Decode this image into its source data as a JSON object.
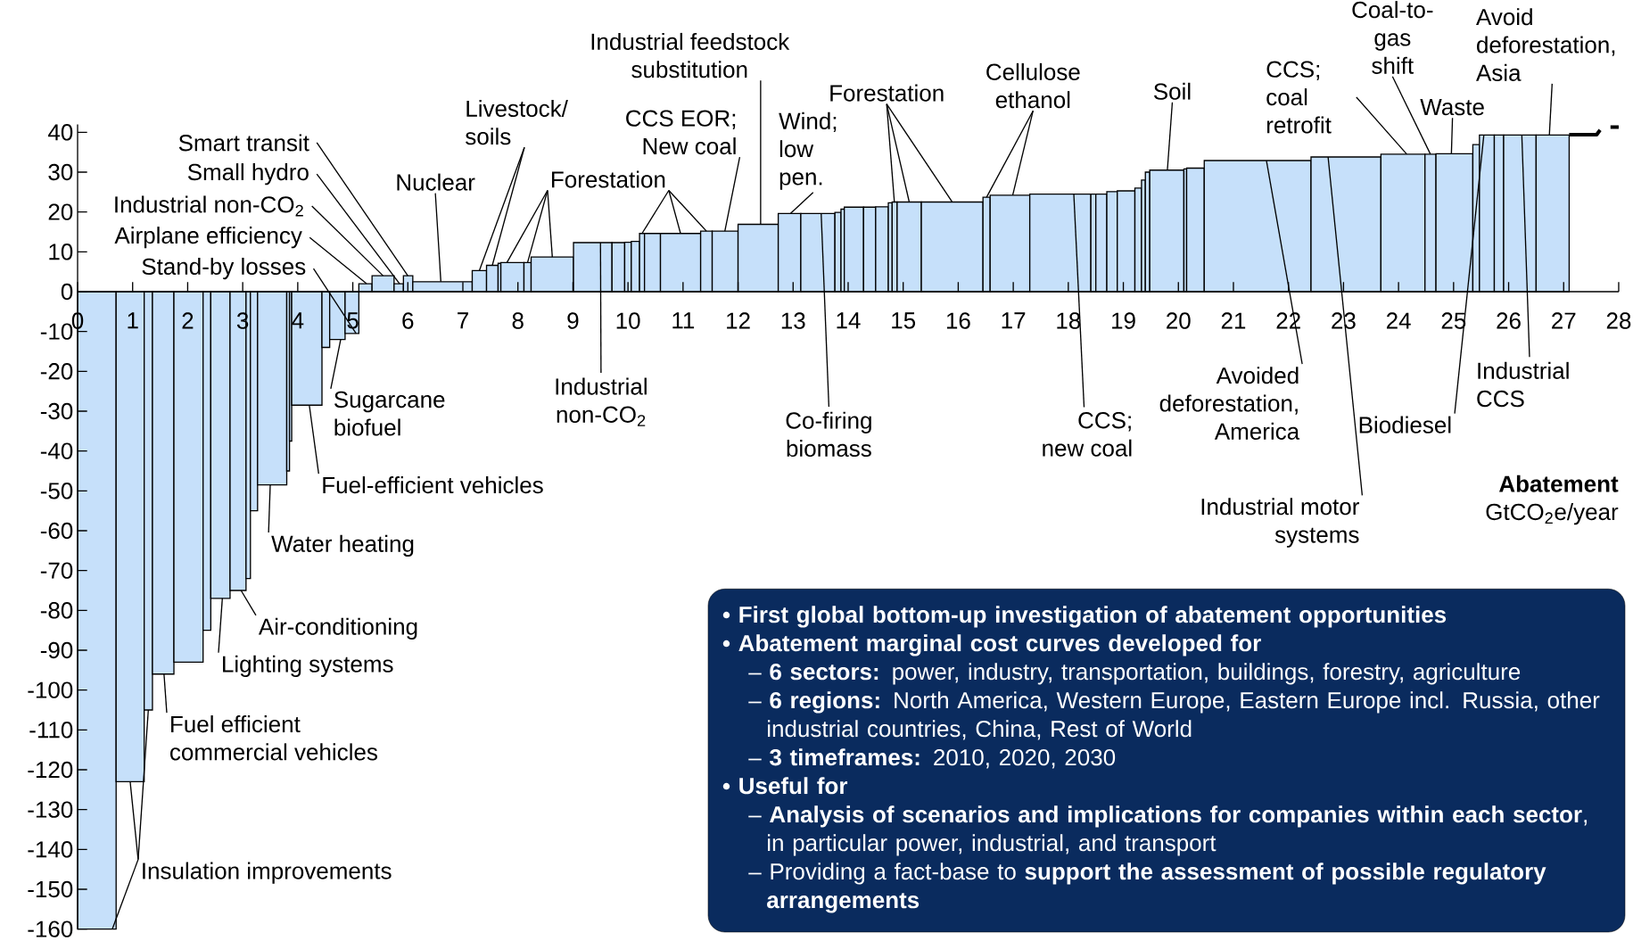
{
  "chart_data": {
    "type": "histogram",
    "xlabel": "**Abatement** GtCO$_{2}$e/year",
    "bins": [
      0,
      0.7,
      1.21,
      1.36,
      1.75,
      2.28,
      2.42,
      2.77,
      3.06,
      3.14,
      3.27,
      3.8,
      3.85,
      3.89,
      4.44,
      4.58,
      4.86,
      5.11,
      5.35,
      5.75,
      5.92,
      6.09,
      7.17,
      7.43,
      7.64,
      7.69,
      8.11,
      8.24,
      9.01,
      9.71,
      9.94,
      10.06,
      10.21,
      10.3,
      10.59,
      11.32,
      11.53,
      12.0,
      12.73,
      13.14,
      13.76,
      13.87,
      13.93,
      14.28,
      14.5,
      14.73,
      14.8,
      14.89,
      15.33,
      16.45,
      16.58,
      17.3,
      18.41,
      18.5,
      18.7,
      18.89,
      19.21,
      19.33,
      19.4,
      19.48,
      20.1,
      20.15,
      20.47,
      22.41,
      23.68,
      24.48,
      24.68,
      25.35,
      25.47,
      25.74,
      25.91,
      26.5,
      27.1
    ],
    "values": [
      -160,
      -123,
      -105,
      -96,
      -93,
      -85,
      -77,
      -75,
      -72,
      -55,
      -48.5,
      -45,
      -37.5,
      -28.5,
      -14,
      -12,
      -10.5,
      2,
      4,
      2,
      4,
      2.5,
      5.3,
      6.6,
      7.1,
      7.3,
      7.3,
      8.7,
      12.3,
      12.3,
      12.4,
      12.6,
      14.6,
      14.6,
      14.6,
      15.2,
      15.2,
      16.9,
      19.6,
      19.6,
      19.9,
      20.7,
      21.2,
      21.2,
      21.3,
      22.3,
      22.5,
      22.5,
      22.5,
      23.7,
      24.2,
      24.5,
      24.5,
      24.5,
      25.1,
      25.3,
      26,
      28,
      30,
      30.5,
      30.8,
      31,
      32.9,
      33.8,
      34.5,
      34.5,
      34.6,
      36.9,
      39.3,
      39.3,
      39.3,
      39.3
    ],
    "color": "#c6e0fa",
    "series": [
      {
        "type": "line",
        "x": [
          27.1,
          27.6,
          27.7,
          28
        ],
        "values": [
          39.4,
          39.4,
          41.3,
          41.3
        ],
        "color": "#000000",
        "line_style": "dashed"
      }
    ],
    "xlim": [
      0,
      28
    ],
    "ylim": [
      -160,
      42
    ],
    "xticks": [
      0,
      1,
      2,
      3,
      4,
      5,
      6,
      7,
      8,
      9,
      10,
      11,
      12,
      13,
      14,
      15,
      16,
      17,
      18,
      19,
      20,
      21,
      22,
      23,
      24,
      25,
      26,
      27,
      28
    ],
    "yticks": [
      -160,
      -150,
      -140,
      -130,
      -120,
      -110,
      -100,
      -90,
      -80,
      -70,
      -60,
      -50,
      -40,
      -30,
      -20,
      -10,
      0,
      10,
      20,
      30,
      40
    ],
    "annotations": [
      {
        "text": "Insulation improvements",
        "x": 0.63,
        "y": -160
      },
      {
        "text": "Fuel efficient commercial vehicles",
        "x": 1.57,
        "y": -96
      },
      {
        "text": "Lighting systems",
        "x": 2.63,
        "y": -77
      },
      {
        "text": "Air-conditioning",
        "x": 2.97,
        "y": -75
      },
      {
        "text": "Water heating",
        "x": 3.5,
        "y": -48.5
      },
      {
        "text": "Fuel-efficient vehicles",
        "x": 4.21,
        "y": -28.5
      },
      {
        "text": "Sugarcane biofuel",
        "x": 4.78,
        "y": -12
      },
      {
        "text": "Stand-by losses",
        "x": 5.06,
        "y": -10.5
      },
      {
        "text": "Airplane efficiency",
        "x": 5.25,
        "y": 2
      },
      {
        "text": "Industrial non-CO$_{2}$",
        "x": 5.55,
        "y": 4
      },
      {
        "text": "Small hydro",
        "x": 5.85,
        "y": 2
      },
      {
        "text": "Smart transit",
        "x": 6.0,
        "y": 4
      },
      {
        "text": "Nuclear",
        "x": 6.6,
        "y": 2.5
      },
      {
        "text": "Livestock/ soils",
        "x": 7.3,
        "y": 5.3
      },
      {
        "text": "Forestation",
        "x": 7.8,
        "y": 7.3
      },
      {
        "text": "Industrial non-CO$_{2}$",
        "x": 9.5,
        "y": 12.3
      },
      {
        "text": "CCS EOR; New coal",
        "x": 11.76,
        "y": 15.2
      },
      {
        "text": "Industrial feedstock substitution",
        "x": 12.41,
        "y": 16.9
      },
      {
        "text": "Wind; low pen.",
        "x": 12.95,
        "y": 19.6
      },
      {
        "text": "Co-firing biomass",
        "x": 13.51,
        "y": 19.6
      },
      {
        "text": "Forestation",
        "x": 14.84,
        "y": 22.5
      },
      {
        "text": "Cellulose ethanol",
        "x": 16.99,
        "y": 24.2
      },
      {
        "text": "CCS; new coal",
        "x": 18.1,
        "y": 24.5
      },
      {
        "text": "Soil",
        "x": 19.8,
        "y": 30.5
      },
      {
        "text": "Avoided deforestation, America",
        "x": 21.6,
        "y": 32.9
      },
      {
        "text": "CCS; coal retrofit",
        "x": 24.15,
        "y": 34.5
      },
      {
        "text": "Industrial motor systems",
        "x": 22.72,
        "y": 33.8
      },
      {
        "text": "Coal-to-gas shift",
        "x": 24.58,
        "y": 34.5
      },
      {
        "text": "Waste",
        "x": 24.96,
        "y": 34.6
      },
      {
        "text": "Biodiesel",
        "x": 25.55,
        "y": 39.3
      },
      {
        "text": "Industrial CCS",
        "x": 26.24,
        "y": 39.3
      },
      {
        "text": "Avoid deforestation, Asia",
        "x": 26.74,
        "y": 39.3
      },
      "• First global bottom-up investigation of abatement opportunities",
      "• Abatement marginal cost curves developed for",
      "– **6 sectors:** power, industry, transportation, buildings, forestry, agriculture",
      "– **6 regions:** North America, Western Europe, Eastern Europe incl. Russia, other industrial countries, China, Rest of World",
      "– **3 timeframes:** 2010, 2020, 2030",
      "• Useful for",
      "– **Analysis of scenarios and implications for companies within each sector**, in particular power, industrial, and transport",
      "– Providing a fact-base to **support the assessment of possible regulatory arrangements**"
    ]
  }
}
